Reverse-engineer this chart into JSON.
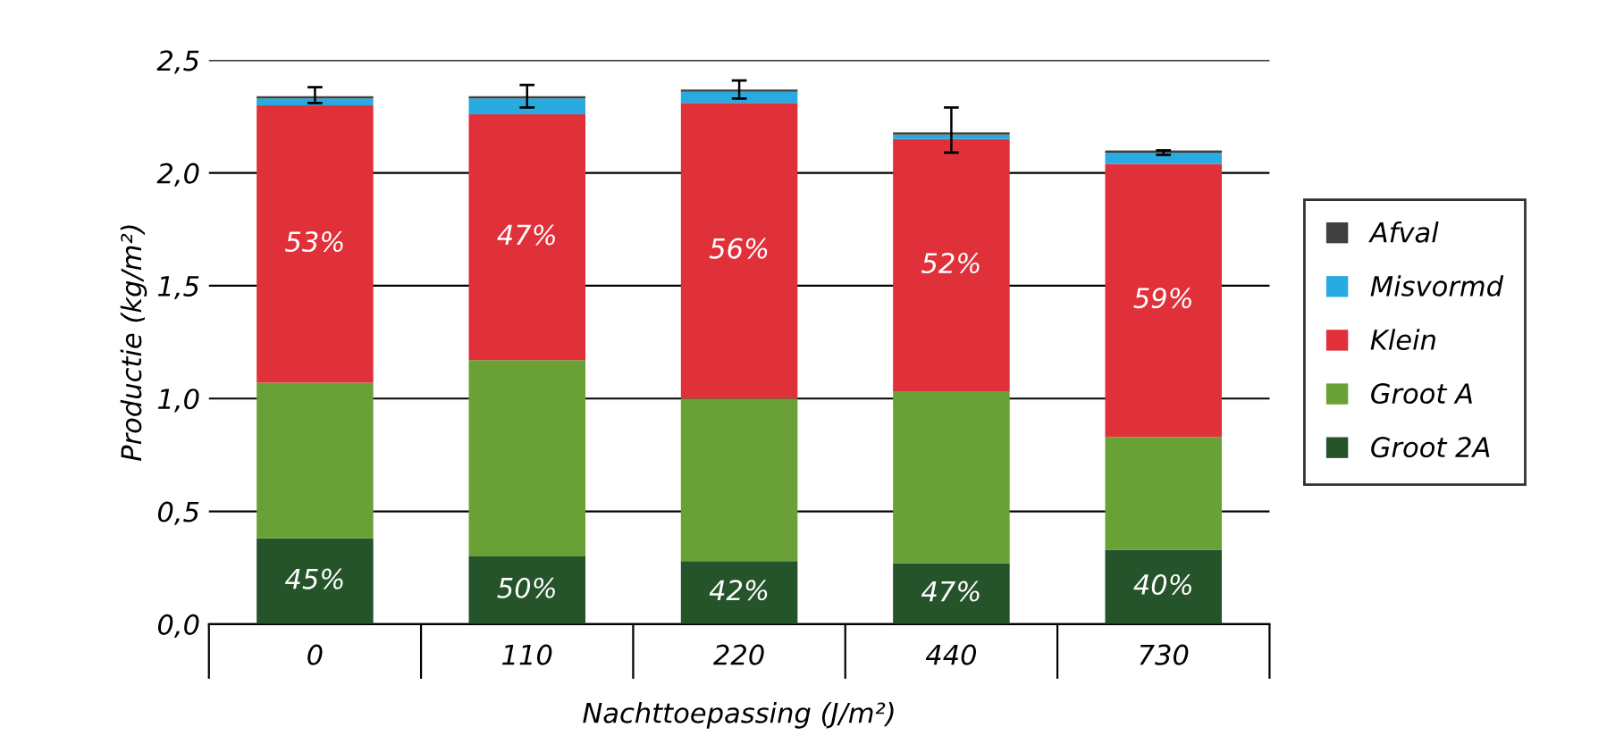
{
  "chart_data": {
    "type": "bar",
    "stacked": true,
    "xlabel": "Nachttoepassing (J/m²)",
    "ylabel": "Productie (kg/m²)",
    "categories": [
      "0",
      "110",
      "220",
      "440",
      "730"
    ],
    "series": [
      {
        "name": "Groot 2A",
        "color": "#25532a",
        "values": [
          0.38,
          0.3,
          0.28,
          0.27,
          0.33
        ]
      },
      {
        "name": "Groot A",
        "color": "#6aa136",
        "values": [
          0.69,
          0.87,
          0.72,
          0.76,
          0.5
        ]
      },
      {
        "name": "Klein",
        "color": "#e0303a",
        "values": [
          1.23,
          1.09,
          1.31,
          1.12,
          1.21
        ]
      },
      {
        "name": "Misvormd",
        "color": "#29abe2",
        "values": [
          0.03,
          0.07,
          0.05,
          0.02,
          0.05
        ]
      },
      {
        "name": "Afval",
        "color": "#404040",
        "values": [
          0.01,
          0.01,
          0.01,
          0.01,
          0.01
        ],
        "errors": [
          [
            2.31,
            2.38
          ],
          [
            2.29,
            2.39
          ],
          [
            2.33,
            2.41
          ],
          [
            2.09,
            2.29
          ],
          [
            2.08,
            2.1
          ]
        ]
      }
    ],
    "annotations": [
      "45%",
      "50%",
      "42%",
      "47%",
      "40%",
      "53%",
      "47%",
      "56%",
      "52%",
      "59%"
    ],
    "ylim": [
      0,
      2.5
    ],
    "yticks": [
      {
        "value": 0,
        "label": "0,0"
      },
      {
        "value": 0.5,
        "label": "0,5"
      },
      {
        "value": 1.0,
        "label": "1,0"
      },
      {
        "value": 1.5,
        "label": "1,5"
      },
      {
        "value": 2.0,
        "label": "2,0"
      },
      {
        "value": 2.5,
        "label": "2,5"
      }
    ],
    "grid": "y",
    "legend": "right"
  }
}
